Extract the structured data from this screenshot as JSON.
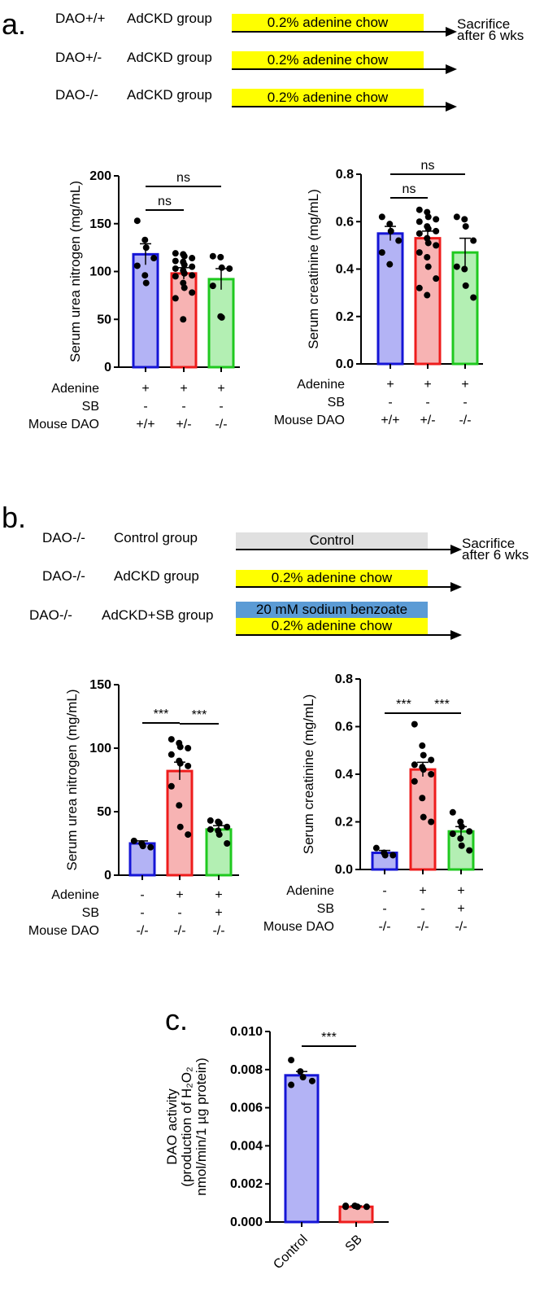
{
  "panels": {
    "a": {
      "label": "a.",
      "schematic": {
        "rows": [
          {
            "genotype": "DAO+/+",
            "group": "AdCKD group",
            "bars": [
              {
                "text": "0.2% adenine chow",
                "color": "#ffff00"
              }
            ]
          },
          {
            "genotype": "DAO+/-",
            "group": "AdCKD group",
            "bars": [
              {
                "text": "0.2% adenine chow",
                "color": "#ffff00"
              }
            ]
          },
          {
            "genotype": "DAO-/-",
            "group": "AdCKD group",
            "bars": [
              {
                "text": "0.2% adenine chow",
                "color": "#ffff00"
              }
            ]
          }
        ],
        "endpoint": [
          "Sacrifice",
          "after 6 wks"
        ]
      }
    },
    "b": {
      "label": "b.",
      "schematic": {
        "rows": [
          {
            "genotype": "DAO-/-",
            "group": "Control group",
            "bars": [
              {
                "text": "Control",
                "color": "#e0e0e0"
              }
            ]
          },
          {
            "genotype": "DAO-/-",
            "group": "AdCKD group",
            "bars": [
              {
                "text": "0.2% adenine chow",
                "color": "#ffff00"
              }
            ]
          },
          {
            "genotype": "DAO-/-",
            "group": "AdCKD+SB group",
            "bars": [
              {
                "text": "20 mM sodium benzoate",
                "color": "#5b9bd5"
              },
              {
                "text": "0.2% adenine chow",
                "color": "#ffff00"
              }
            ]
          }
        ],
        "endpoint": [
          "Sacrifice",
          "after 6 wks"
        ]
      }
    },
    "c": {
      "label": "c."
    }
  },
  "colors": {
    "blue": "#1515d6",
    "blue_fill": "#b3b3f5",
    "red": "#ee1c1c",
    "red_fill": "#f7b3b3",
    "green": "#1fc91f",
    "green_fill": "#b3efb3"
  },
  "chart_data": [
    {
      "id": "a-bun",
      "type": "bar",
      "panel": "a",
      "ylabel": "Serum urea nitrogen (mg/mL)",
      "ylim": [
        0,
        200
      ],
      "yticks": [
        0,
        50,
        100,
        150,
        200
      ],
      "categories": [
        "+/+",
        "+/-",
        "-/-"
      ],
      "values": [
        118,
        98,
        92
      ],
      "sem": [
        11,
        6,
        11
      ],
      "colors": [
        "blue",
        "red",
        "green"
      ],
      "points": [
        [
          153,
          133,
          125,
          114,
          106,
          96,
          88
        ],
        [
          119,
          118,
          116,
          114,
          111,
          110,
          107,
          105,
          103,
          101,
          98,
          96,
          95,
          88,
          83,
          78,
          72,
          50
        ],
        [
          116,
          115,
          104,
          103,
          85,
          53,
          52
        ]
      ],
      "conditions": [
        {
          "label": "Adenine",
          "values": [
            "+",
            "+",
            "+"
          ]
        },
        {
          "label": "SB",
          "values": [
            "-",
            "-",
            "-"
          ]
        },
        {
          "label": "Mouse DAO",
          "values": [
            "+/+",
            "+/-",
            "-/-"
          ]
        }
      ],
      "significance": [
        {
          "from": 0,
          "to": 1,
          "text": "ns"
        },
        {
          "from": 0,
          "to": 2,
          "text": "ns"
        }
      ]
    },
    {
      "id": "a-creat",
      "type": "bar",
      "panel": "a",
      "ylabel": "Serum creatinine (mg/mL)",
      "ylim": [
        0,
        0.8
      ],
      "yticks": [
        "0.0",
        "0.2",
        "0.4",
        "0.6",
        "0.8"
      ],
      "categories": [
        "+/+",
        "+/-",
        "-/-"
      ],
      "values": [
        0.55,
        0.53,
        0.47
      ],
      "sem": [
        0.03,
        0.03,
        0.06
      ],
      "colors": [
        "blue",
        "red",
        "green"
      ],
      "points": [
        [
          0.62,
          0.59,
          0.56,
          0.52,
          0.47,
          0.42
        ],
        [
          0.65,
          0.64,
          0.62,
          0.61,
          0.6,
          0.58,
          0.57,
          0.56,
          0.55,
          0.53,
          0.51,
          0.5,
          0.47,
          0.45,
          0.41,
          0.36,
          0.32,
          0.29
        ],
        [
          0.62,
          0.61,
          0.58,
          0.52,
          0.41,
          0.4,
          0.33,
          0.28
        ]
      ],
      "conditions": [
        {
          "label": "Adenine",
          "values": [
            "+",
            "+",
            "+"
          ]
        },
        {
          "label": "SB",
          "values": [
            "-",
            "-",
            "-"
          ]
        },
        {
          "label": "Mouse DAO",
          "values": [
            "+/+",
            "+/-",
            "-/-"
          ]
        }
      ],
      "significance": [
        {
          "from": 0,
          "to": 1,
          "text": "ns"
        },
        {
          "from": 0,
          "to": 2,
          "text": "ns"
        }
      ]
    },
    {
      "id": "b-bun",
      "type": "bar",
      "panel": "b",
      "ylabel": "Serum urea nitrogen (mg/mL)",
      "ylim": [
        0,
        150
      ],
      "yticks": [
        0,
        50,
        100,
        150
      ],
      "categories": [
        "-/-",
        "-/-",
        "-/-"
      ],
      "values": [
        25,
        82,
        36
      ],
      "sem": [
        2,
        7,
        3
      ],
      "colors": [
        "blue",
        "red",
        "green"
      ],
      "points": [
        [
          27,
          25,
          23,
          22
        ],
        [
          107,
          104,
          101,
          100,
          95,
          90,
          88,
          86,
          70,
          55,
          38,
          32
        ],
        [
          43,
          42,
          41,
          38,
          36,
          35,
          32,
          25
        ]
      ],
      "conditions": [
        {
          "label": "Adenine",
          "values": [
            "-",
            "+",
            "+"
          ]
        },
        {
          "label": "SB",
          "values": [
            "-",
            "-",
            "+"
          ]
        },
        {
          "label": "Mouse DAO",
          "values": [
            "-/-",
            "-/-",
            "-/-"
          ]
        }
      ],
      "significance": [
        {
          "from": 0,
          "to": 1,
          "text": "***"
        },
        {
          "from": 1,
          "to": 2,
          "text": "***"
        }
      ]
    },
    {
      "id": "b-creat",
      "type": "bar",
      "panel": "b",
      "ylabel": "Serum creatinine (mg/mL)",
      "ylim": [
        0,
        0.8
      ],
      "yticks": [
        "0.0",
        "0.2",
        "0.4",
        "0.6",
        "0.8"
      ],
      "categories": [
        "-/-",
        "-/-",
        "-/-"
      ],
      "values": [
        0.07,
        0.42,
        0.16
      ],
      "sem": [
        0.01,
        0.03,
        0.02
      ],
      "colors": [
        "blue",
        "red",
        "green"
      ],
      "points": [
        [
          0.09,
          0.07,
          0.06,
          0.06
        ],
        [
          0.61,
          0.52,
          0.48,
          0.46,
          0.44,
          0.43,
          0.42,
          0.4,
          0.37,
          0.3,
          0.22,
          0.2
        ],
        [
          0.24,
          0.2,
          0.18,
          0.16,
          0.15,
          0.13,
          0.1,
          0.08
        ]
      ],
      "conditions": [
        {
          "label": "Adenine",
          "values": [
            "-",
            "+",
            "+"
          ]
        },
        {
          "label": "SB",
          "values": [
            "-",
            "-",
            "+"
          ]
        },
        {
          "label": "Mouse DAO",
          "values": [
            "-/-",
            "-/-",
            "-/-"
          ]
        }
      ],
      "significance": [
        {
          "from": 0,
          "to": 1,
          "text": "***"
        },
        {
          "from": 1,
          "to": 2,
          "text": "***"
        }
      ]
    },
    {
      "id": "c-dao",
      "type": "bar",
      "panel": "c",
      "ylabel_lines": [
        "DAO activity",
        "(production of H₂O₂",
        "nmol/min/1 µg protein)"
      ],
      "ylim": [
        0,
        0.01
      ],
      "yticks": [
        "0.000",
        "0.002",
        "0.004",
        "0.006",
        "0.008",
        "0.010"
      ],
      "categories": [
        "Control",
        "SB"
      ],
      "values": [
        0.0077,
        0.0008
      ],
      "sem": [
        0.0002,
        5e-05
      ],
      "colors": [
        "blue",
        "red"
      ],
      "points": [
        [
          0.0085,
          0.0079,
          0.0076,
          0.0074,
          0.0072
        ],
        [
          0.00085,
          0.00085,
          0.0008,
          0.0008,
          0.0008
        ]
      ],
      "significance": [
        {
          "from": 0,
          "to": 1,
          "text": "***"
        }
      ]
    }
  ]
}
